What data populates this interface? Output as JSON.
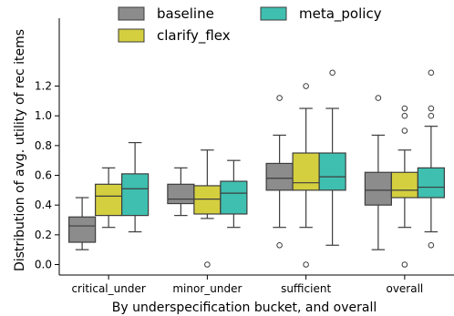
{
  "chart_data": {
    "type": "box",
    "xlabel": "By underspecification bucket, and overall",
    "ylabel": "Distribution of avg. utility of rec items",
    "ylim": [
      -0.07,
      1.35
    ],
    "yticks": [
      "0.0",
      "0.2",
      "0.4",
      "0.6",
      "0.8",
      "1.0",
      "1.2"
    ],
    "categories": [
      "critical_under",
      "minor_under",
      "sufficient",
      "overall"
    ],
    "legend_position": "top",
    "series": [
      {
        "name": "baseline",
        "color": "#8c8c8c",
        "boxes": [
          {
            "whislo": 0.1,
            "q1": 0.15,
            "med": 0.26,
            "q3": 0.32,
            "whishi": 0.45,
            "fliers": []
          },
          {
            "whislo": 0.33,
            "q1": 0.41,
            "med": 0.44,
            "q3": 0.54,
            "whishi": 0.65,
            "fliers": []
          },
          {
            "whislo": 0.25,
            "q1": 0.5,
            "med": 0.58,
            "q3": 0.68,
            "whishi": 0.87,
            "fliers": [
              0.13,
              1.12
            ]
          },
          {
            "whislo": 0.1,
            "q1": 0.4,
            "med": 0.5,
            "q3": 0.62,
            "whishi": 0.87,
            "fliers": [
              1.12
            ]
          }
        ]
      },
      {
        "name": "clarify_flex",
        "color": "#d4cf3f",
        "boxes": [
          {
            "whislo": 0.25,
            "q1": 0.33,
            "med": 0.46,
            "q3": 0.54,
            "whishi": 0.65,
            "fliers": []
          },
          {
            "whislo": 0.31,
            "q1": 0.34,
            "med": 0.44,
            "q3": 0.53,
            "whishi": 0.77,
            "fliers": [
              0.0
            ]
          },
          {
            "whislo": 0.25,
            "q1": 0.5,
            "med": 0.55,
            "q3": 0.75,
            "whishi": 1.05,
            "fliers": [
              0.0,
              1.2
            ]
          },
          {
            "whislo": 0.25,
            "q1": 0.45,
            "med": 0.5,
            "q3": 0.62,
            "whishi": 0.77,
            "fliers": [
              0.0,
              0.9,
              1.0,
              1.05
            ]
          }
        ]
      },
      {
        "name": "meta_policy",
        "color": "#3fbfb0",
        "boxes": [
          {
            "whislo": 0.22,
            "q1": 0.33,
            "med": 0.51,
            "q3": 0.61,
            "whishi": 0.82,
            "fliers": []
          },
          {
            "whislo": 0.25,
            "q1": 0.34,
            "med": 0.48,
            "q3": 0.56,
            "whishi": 0.7,
            "fliers": []
          },
          {
            "whislo": 0.13,
            "q1": 0.5,
            "med": 0.59,
            "q3": 0.75,
            "whishi": 1.05,
            "fliers": [
              1.29
            ]
          },
          {
            "whislo": 0.22,
            "q1": 0.45,
            "med": 0.52,
            "q3": 0.65,
            "whishi": 0.93,
            "fliers": [
              0.13,
              1.0,
              1.05,
              1.29
            ]
          }
        ]
      }
    ]
  }
}
